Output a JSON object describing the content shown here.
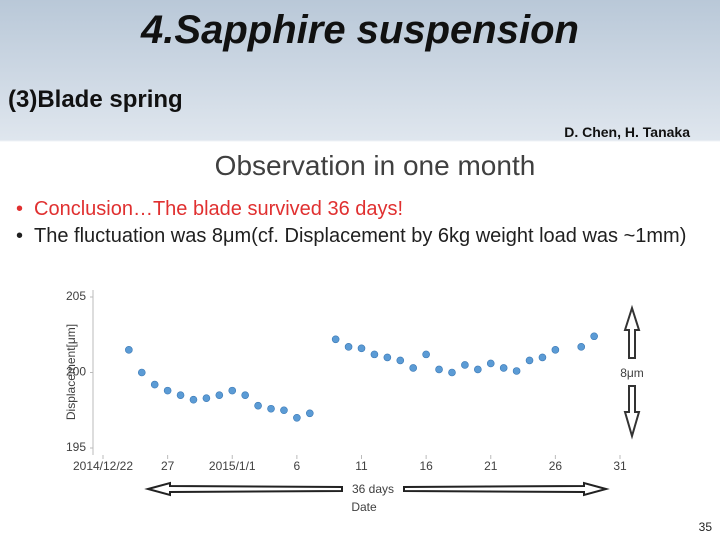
{
  "slide": {
    "title": "4.Sapphire suspension",
    "subtitle": "(3)Blade spring",
    "authors": "D. Chen, H. Tanaka",
    "bullets": [
      "Conclusion…The blade survived 36 days!",
      "The fluctuation was 8μm(cf. Displacement by 6kg weight load was ~1mm)"
    ],
    "page_number": "35"
  },
  "chart_data": {
    "type": "scatter",
    "title": "Observation in one month",
    "x_label": "Date",
    "y_label": "Displacement[μm]",
    "color": "#5b9bd5",
    "annotations": [
      "8μm",
      "36 days"
    ],
    "x": [
      "2014-12-24",
      "2014-12-25",
      "2014-12-26",
      "2014-12-27",
      "2014-12-28",
      "2014-12-29",
      "2014-12-30",
      "2014-12-31",
      "2015-01-01",
      "2015-01-02",
      "2015-01-03",
      "2015-01-04",
      "2015-01-05",
      "2015-01-06",
      "2015-01-07",
      "2015-01-09",
      "2015-01-10",
      "2015-01-11",
      "2015-01-12",
      "2015-01-13",
      "2015-01-14",
      "2015-01-15",
      "2015-01-16",
      "2015-01-17",
      "2015-01-18",
      "2015-01-19",
      "2015-01-20",
      "2015-01-21",
      "2015-01-22",
      "2015-01-23",
      "2015-01-24",
      "2015-01-25",
      "2015-01-26",
      "2015-01-28",
      "2015-01-29"
    ],
    "values": [
      201.5,
      200.0,
      199.2,
      198.8,
      198.5,
      198.2,
      198.3,
      198.5,
      198.8,
      198.5,
      197.8,
      197.6,
      197.5,
      197.0,
      197.3,
      202.2,
      201.7,
      201.6,
      201.2,
      201.0,
      200.8,
      200.3,
      201.2,
      200.2,
      200.0,
      200.5,
      200.2,
      200.6,
      200.3,
      200.1,
      200.8,
      201.0,
      201.5,
      201.7,
      202.4
    ],
    "xlim": [
      "2014-12-22",
      "2015-01-31"
    ],
    "xticks": [
      {
        "value": "2014-12-22",
        "label": "2014/12/22"
      },
      {
        "value": "2014-12-27",
        "label": "27"
      },
      {
        "value": "2015-01-01",
        "label": "2015/1/1"
      },
      {
        "value": "2015-01-06",
        "label": "6"
      },
      {
        "value": "2015-01-11",
        "label": "11"
      },
      {
        "value": "2015-01-16",
        "label": "16"
      },
      {
        "value": "2015-01-21",
        "label": "21"
      },
      {
        "value": "2015-01-26",
        "label": "26"
      },
      {
        "value": "2015-01-31",
        "label": "31"
      }
    ],
    "ylim": [
      195,
      205
    ],
    "yticks": [
      195,
      200,
      205
    ],
    "grid": false
  }
}
